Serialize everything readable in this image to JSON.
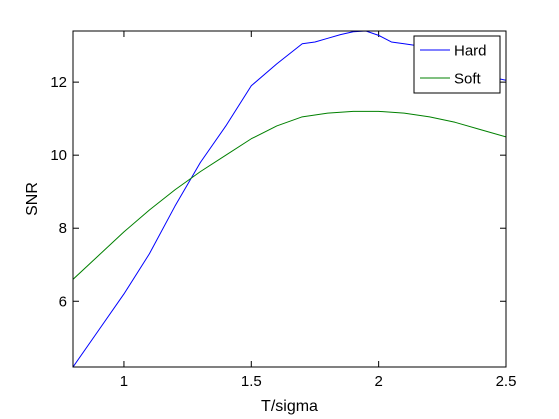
{
  "chart_data": {
    "type": "line",
    "title": "",
    "xlabel": "T/sigma",
    "ylabel": "SNR",
    "xlim": [
      0.8,
      2.5
    ],
    "ylim": [
      4.2,
      13.4
    ],
    "xticks": [
      1,
      1.5,
      2,
      2.5
    ],
    "xtick_labels": [
      "1",
      "1.5",
      "2",
      "2.5"
    ],
    "yticks": [
      6,
      8,
      10,
      12
    ],
    "ytick_labels": [
      "6",
      "8",
      "10",
      "12"
    ],
    "grid": false,
    "legend_position": "top-right",
    "series": [
      {
        "name": "Hard",
        "color": "#0000ff",
        "x": [
          0.8,
          0.9,
          1.0,
          1.1,
          1.2,
          1.3,
          1.4,
          1.5,
          1.6,
          1.7,
          1.75,
          1.8,
          1.85,
          1.9,
          1.95,
          2.0,
          2.05,
          2.1,
          2.15,
          2.2,
          2.3,
          2.4,
          2.5
        ],
        "values": [
          4.2,
          5.2,
          6.2,
          7.3,
          8.6,
          9.8,
          10.8,
          11.9,
          12.5,
          13.05,
          13.1,
          13.2,
          13.3,
          13.38,
          13.4,
          13.28,
          13.1,
          13.05,
          13.0,
          12.9,
          12.55,
          12.2,
          12.05
        ]
      },
      {
        "name": "Soft",
        "color": "#008000",
        "x": [
          0.8,
          0.9,
          1.0,
          1.1,
          1.2,
          1.3,
          1.4,
          1.5,
          1.6,
          1.7,
          1.8,
          1.9,
          2.0,
          2.1,
          2.2,
          2.3,
          2.4,
          2.5
        ],
        "values": [
          6.6,
          7.25,
          7.9,
          8.5,
          9.05,
          9.55,
          10.0,
          10.45,
          10.8,
          11.05,
          11.15,
          11.2,
          11.2,
          11.15,
          11.05,
          10.9,
          10.7,
          10.5
        ]
      }
    ]
  }
}
